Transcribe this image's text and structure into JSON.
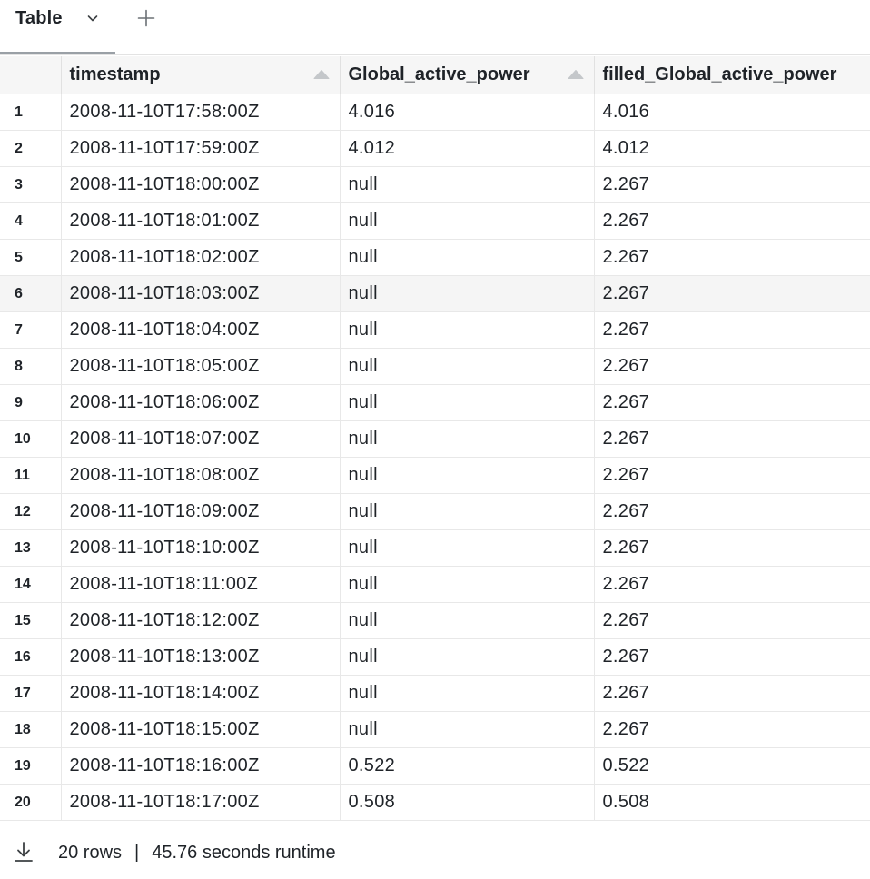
{
  "tabbar": {
    "active_tab": "Table",
    "chevron_icon": "chevron-down-icon",
    "add_icon": "plus-icon"
  },
  "table": {
    "columns": [
      {
        "label": "",
        "sortable": false
      },
      {
        "label": "timestamp",
        "sortable": true
      },
      {
        "label": "Global_active_power",
        "sortable": true
      },
      {
        "label": "filled_Global_active_power",
        "sortable": false
      }
    ],
    "rows": [
      {
        "index": "1",
        "timestamp": "2008-11-10T17:58:00Z",
        "gap": "4.016",
        "fgap": "4.016"
      },
      {
        "index": "2",
        "timestamp": "2008-11-10T17:59:00Z",
        "gap": "4.012",
        "fgap": "4.012"
      },
      {
        "index": "3",
        "timestamp": "2008-11-10T18:00:00Z",
        "gap": "null",
        "fgap": "2.267"
      },
      {
        "index": "4",
        "timestamp": "2008-11-10T18:01:00Z",
        "gap": "null",
        "fgap": "2.267"
      },
      {
        "index": "5",
        "timestamp": "2008-11-10T18:02:00Z",
        "gap": "null",
        "fgap": "2.267"
      },
      {
        "index": "6",
        "timestamp": "2008-11-10T18:03:00Z",
        "gap": "null",
        "fgap": "2.267"
      },
      {
        "index": "7",
        "timestamp": "2008-11-10T18:04:00Z",
        "gap": "null",
        "fgap": "2.267"
      },
      {
        "index": "8",
        "timestamp": "2008-11-10T18:05:00Z",
        "gap": "null",
        "fgap": "2.267"
      },
      {
        "index": "9",
        "timestamp": "2008-11-10T18:06:00Z",
        "gap": "null",
        "fgap": "2.267"
      },
      {
        "index": "10",
        "timestamp": "2008-11-10T18:07:00Z",
        "gap": "null",
        "fgap": "2.267"
      },
      {
        "index": "11",
        "timestamp": "2008-11-10T18:08:00Z",
        "gap": "null",
        "fgap": "2.267"
      },
      {
        "index": "12",
        "timestamp": "2008-11-10T18:09:00Z",
        "gap": "null",
        "fgap": "2.267"
      },
      {
        "index": "13",
        "timestamp": "2008-11-10T18:10:00Z",
        "gap": "null",
        "fgap": "2.267"
      },
      {
        "index": "14",
        "timestamp": "2008-11-10T18:11:00Z",
        "gap": "null",
        "fgap": "2.267"
      },
      {
        "index": "15",
        "timestamp": "2008-11-10T18:12:00Z",
        "gap": "null",
        "fgap": "2.267"
      },
      {
        "index": "16",
        "timestamp": "2008-11-10T18:13:00Z",
        "gap": "null",
        "fgap": "2.267"
      },
      {
        "index": "17",
        "timestamp": "2008-11-10T18:14:00Z",
        "gap": "null",
        "fgap": "2.267"
      },
      {
        "index": "18",
        "timestamp": "2008-11-10T18:15:00Z",
        "gap": "null",
        "fgap": "2.267"
      },
      {
        "index": "19",
        "timestamp": "2008-11-10T18:16:00Z",
        "gap": "0.522",
        "fgap": "0.522"
      },
      {
        "index": "20",
        "timestamp": "2008-11-10T18:17:00Z",
        "gap": "0.508",
        "fgap": "0.508"
      }
    ]
  },
  "footer": {
    "download_icon": "download-icon",
    "row_count": "20 rows",
    "separator": "|",
    "runtime": "45.76 seconds runtime"
  },
  "colors": {
    "header_bg": "#f6f6f6",
    "hover_row_bg": "#f5f5f5",
    "border": "#e1e1e1",
    "text": "#1f2328"
  }
}
